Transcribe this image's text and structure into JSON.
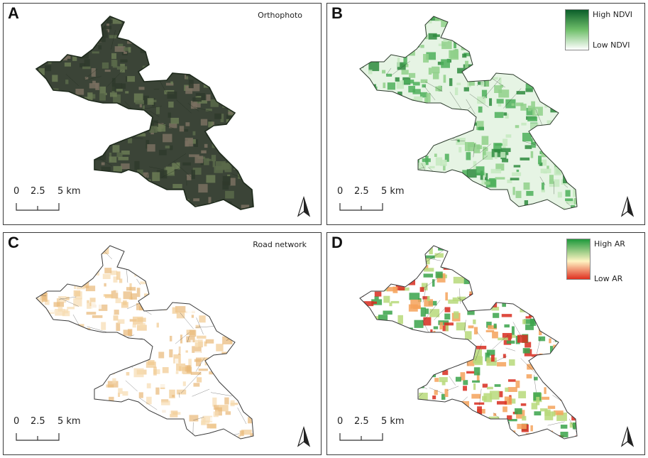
{
  "panels": [
    {
      "letter": "A",
      "title": "Orthophoto"
    },
    {
      "letter": "B",
      "legend": {
        "high": "High NDVI",
        "low": "Low NDVI",
        "colors": [
          "#0b5e2a",
          "#6fbf6a",
          "#ffffff"
        ]
      }
    },
    {
      "letter": "C",
      "title": "Road network"
    },
    {
      "letter": "D",
      "legend": {
        "high": "High AR",
        "low": "Low AR",
        "colors": [
          "#1f9a3c",
          "#fff4c2",
          "#e03020"
        ]
      }
    }
  ],
  "scalebar": {
    "zero": "0",
    "mid": "2.5",
    "end": "5 km"
  },
  "colors": {
    "orthophoto": "#3b4437",
    "ndvi": "#4caf5a",
    "roads": "#e8b878",
    "ar_low": "#d82b1f",
    "ar_high": "#3aa34a",
    "border": "#3a3a3a"
  },
  "icons": {
    "north_arrow": "north-arrow-icon"
  }
}
